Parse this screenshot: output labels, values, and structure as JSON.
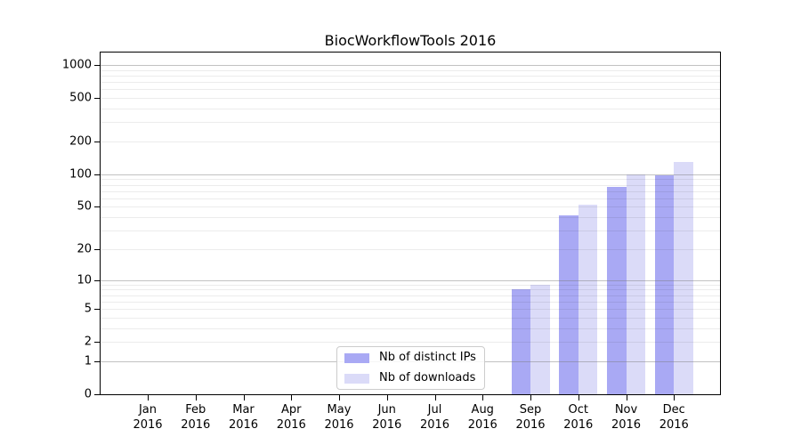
{
  "chart_data": {
    "type": "bar",
    "title": "BiocWorkflowTools 2016",
    "categories": [
      "Jan",
      "Feb",
      "Mar",
      "Apr",
      "May",
      "Jun",
      "Jul",
      "Aug",
      "Sep",
      "Oct",
      "Nov",
      "Dec"
    ],
    "year": "2016",
    "series": [
      {
        "name": "Nb of distinct IPs",
        "color": "#a9a9f4",
        "values": [
          0,
          0,
          0,
          0,
          0,
          0,
          0,
          0,
          8,
          42,
          76,
          98
        ]
      },
      {
        "name": "Nb of downloads",
        "color": "#dbdbf8",
        "values": [
          0,
          0,
          0,
          0,
          0,
          0,
          0,
          0,
          9,
          52,
          100,
          130
        ]
      }
    ],
    "y_scale": "log1p",
    "y_ticks": [
      0,
      1,
      2,
      5,
      10,
      20,
      50,
      100,
      200,
      500,
      1000
    ],
    "ylim": [
      0,
      1300
    ],
    "grid": "major-and-minor",
    "legend_position": "bottom-center",
    "colors": {
      "major_grid": "#bdbdbd",
      "minor_grid": "#ececec",
      "spine": "#000000",
      "background": "#ffffff"
    }
  }
}
